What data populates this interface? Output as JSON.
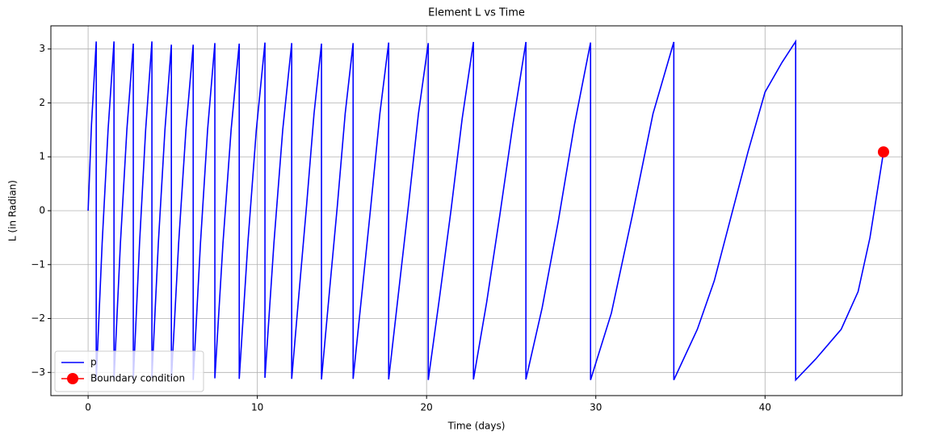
{
  "chart_data": {
    "type": "line",
    "title": "Element L vs Time",
    "x_label": "Time (days)",
    "y_label": "L (in Radian)",
    "xlim": [
      -2.2,
      48.1
    ],
    "ylim": [
      -3.43,
      3.43
    ],
    "xticks": [
      0,
      10,
      20,
      30,
      40
    ],
    "yticks": [
      {
        "value": -3,
        "label": "−3"
      },
      {
        "value": -2,
        "label": "−2"
      },
      {
        "value": -1,
        "label": "−1"
      },
      0,
      1,
      2,
      3
    ],
    "grid": true,
    "legend_location": "lower left",
    "series": [
      {
        "name": "p",
        "color": "#0000ff",
        "marker": "none",
        "x": [
          0,
          0.2,
          0.48,
          0.48,
          0.83,
          1.18,
          1.53,
          1.53,
          1.91,
          2.29,
          2.67,
          2.67,
          3.04,
          3.4,
          3.77,
          3.77,
          4.15,
          4.54,
          4.92,
          4.92,
          5.35,
          5.78,
          6.21,
          6.21,
          6.64,
          7.06,
          7.49,
          7.49,
          7.97,
          8.45,
          8.93,
          8.93,
          9.44,
          9.94,
          10.45,
          10.45,
          10.98,
          11.5,
          12.03,
          12.03,
          12.47,
          12.91,
          13.35,
          13.79,
          13.79,
          14.26,
          14.73,
          15.19,
          15.66,
          15.66,
          16.19,
          16.71,
          17.24,
          17.76,
          17.76,
          18.35,
          18.93,
          19.52,
          20.1,
          20.1,
          20.77,
          21.44,
          22.1,
          22.77,
          22.77,
          23.55,
          24.32,
          25.1,
          25.87,
          25.87,
          26.83,
          27.78,
          28.74,
          29.69,
          29.69,
          30.92,
          32.15,
          33.38,
          34.61,
          34.61,
          36.0,
          37.0,
          38.0,
          39.0,
          40.0,
          41.0,
          41.81,
          41.81,
          43.0,
          44.5,
          45.5,
          46.2,
          47.0
        ],
        "values": [
          0,
          1.6,
          3.14,
          -3.14,
          -0.6,
          1.5,
          3.14,
          -3.14,
          -0.6,
          1.5,
          3.1,
          -3.14,
          -0.6,
          1.5,
          3.14,
          -3.1,
          -0.6,
          1.5,
          3.08,
          -3.14,
          -0.6,
          1.5,
          3.08,
          -3.14,
          -0.6,
          1.5,
          3.11,
          -3.11,
          -0.6,
          1.5,
          3.1,
          -3.12,
          -0.6,
          1.5,
          3.12,
          -3.1,
          -0.6,
          1.5,
          3.11,
          -3.12,
          -1.5,
          0.1,
          1.8,
          3.1,
          -3.13,
          -1.5,
          0.1,
          1.8,
          3.11,
          -3.12,
          -1.5,
          0.1,
          1.8,
          3.12,
          -3.13,
          -1.5,
          0.1,
          1.8,
          3.11,
          -3.14,
          -1.6,
          0.0,
          1.7,
          3.13,
          -3.13,
          -1.7,
          -0.1,
          1.6,
          3.13,
          -3.13,
          -1.8,
          -0.2,
          1.6,
          3.12,
          -3.14,
          -1.9,
          -0.1,
          1.8,
          3.13,
          -3.14,
          -2.2,
          -1.3,
          -0.1,
          1.1,
          2.2,
          2.75,
          3.14,
          -3.14,
          -2.75,
          -2.2,
          -1.5,
          -0.5,
          1.09
        ]
      },
      {
        "name": "Boundary condition",
        "color": "#ff0000",
        "marker": "circle",
        "x": [
          47.0
        ],
        "values": [
          1.09
        ]
      }
    ]
  }
}
